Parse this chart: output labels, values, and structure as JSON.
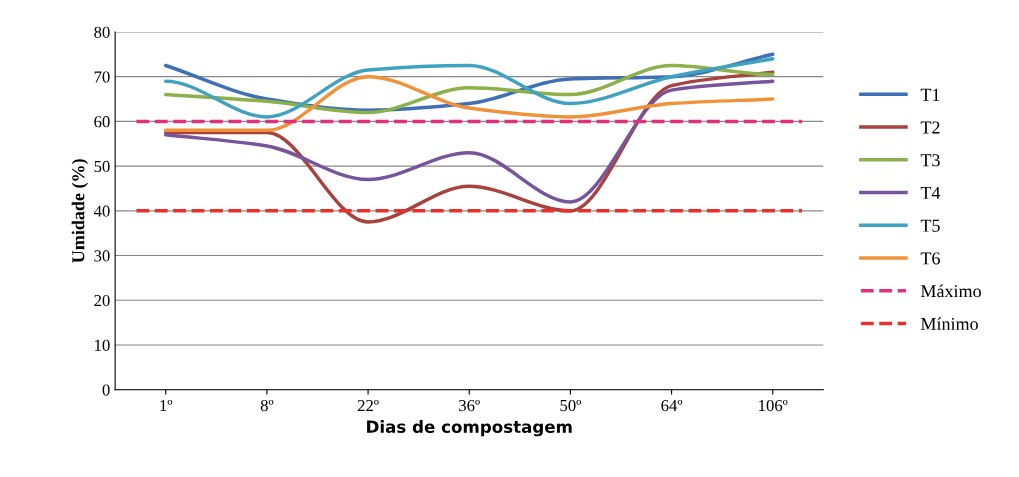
{
  "chart_data": {
    "type": "line",
    "xlabel": "Dias de compostagem",
    "ylabel": "Umidade (%)",
    "categories": [
      "1º",
      "8º",
      "22º",
      "36º",
      "50º",
      "64º",
      "106º"
    ],
    "series": [
      {
        "name": "T1",
        "color": "#3f6fb5",
        "values": [
          72.5,
          65,
          62.5,
          64,
          69.5,
          70,
          75
        ]
      },
      {
        "name": "T2",
        "color": "#a8423e",
        "values": [
          57.5,
          57.5,
          37.5,
          45.5,
          40,
          68,
          71
        ]
      },
      {
        "name": "T3",
        "color": "#8cb04a",
        "values": [
          66,
          64.5,
          62,
          67.5,
          66,
          72.5,
          70.5
        ]
      },
      {
        "name": "T4",
        "color": "#77559b",
        "values": [
          57,
          54.5,
          47,
          53,
          42,
          67,
          69
        ]
      },
      {
        "name": "T5",
        "color": "#3fa3bf",
        "values": [
          69,
          61,
          71.5,
          72.5,
          64,
          70,
          74
        ]
      },
      {
        "name": "T6",
        "color": "#f0923a",
        "values": [
          58,
          58,
          70,
          63,
          61,
          64,
          65
        ]
      }
    ],
    "ref_lines": [
      {
        "axis": "y",
        "value": 60,
        "label": "Máximo",
        "color": "#e2307c",
        "line_style": "dashed"
      },
      {
        "axis": "y",
        "value": 40,
        "label": "Mínimo",
        "color": "#e8302c",
        "line_style": "dashed"
      }
    ],
    "ylim": [
      0,
      80
    ],
    "yticks": [
      0,
      10,
      20,
      30,
      40,
      50,
      60,
      70,
      80
    ],
    "grid": "y",
    "legend": "right",
    "line_style": "solid",
    "marker": "none"
  }
}
